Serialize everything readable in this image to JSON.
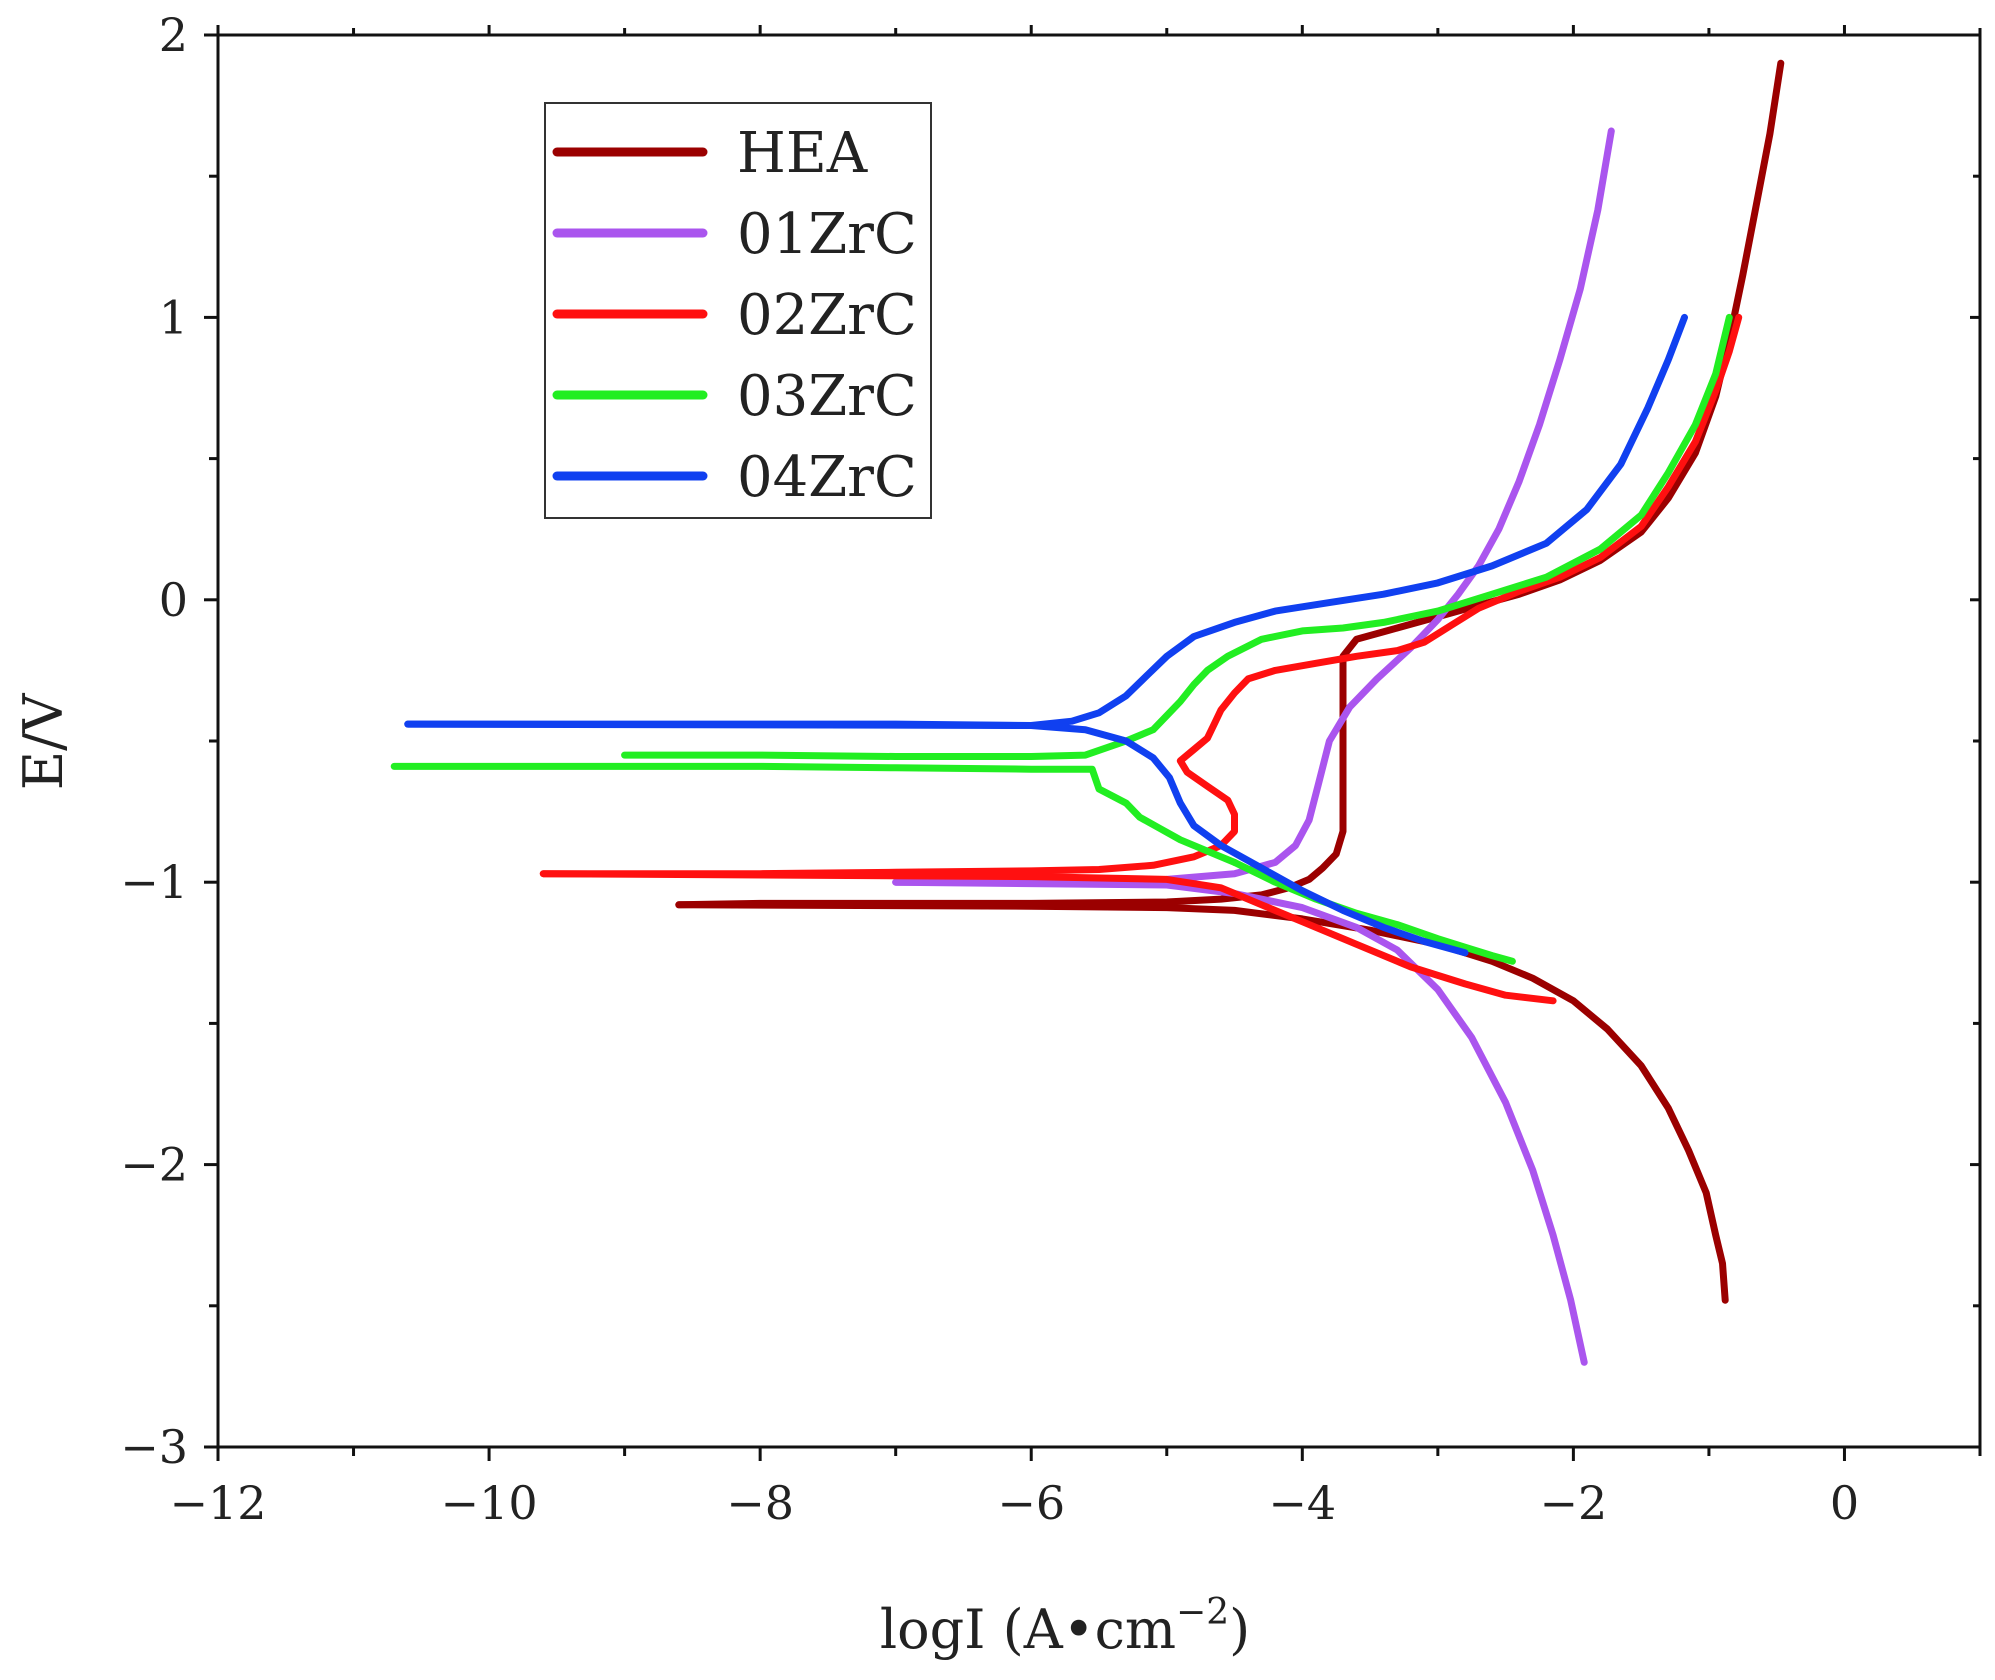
{
  "chart_data": {
    "type": "line",
    "title": "",
    "xlabel": "logI (A•cm",
    "xlabel_sup": "−2",
    "xlabel_close": ")",
    "ylabel": "E/V",
    "xlim": [
      -12,
      1
    ],
    "ylim": [
      -3,
      2
    ],
    "xticks": [
      -12,
      -10,
      -8,
      -6,
      -4,
      -2,
      0
    ],
    "xtick_labels": [
      "−12",
      "−10",
      "−8",
      "−6",
      "−4",
      "−2",
      "0"
    ],
    "yticks": [
      -3,
      -2,
      -1,
      0,
      1,
      2
    ],
    "ytick_labels": [
      "−3",
      "−2",
      "−1",
      "0",
      "1",
      "2"
    ],
    "grid": false,
    "legend_position": "top-left",
    "series": [
      {
        "name": "HEA",
        "color": "#9b0000",
        "points": [
          [
            -8.6,
            -1.08
          ],
          [
            -8.0,
            -1.075
          ],
          [
            -7.0,
            -1.075
          ],
          [
            -6.0,
            -1.075
          ],
          [
            -5.0,
            -1.07
          ],
          [
            -4.6,
            -1.06
          ],
          [
            -4.3,
            -1.045
          ],
          [
            -4.1,
            -1.02
          ],
          [
            -3.95,
            -0.99
          ],
          [
            -3.85,
            -0.95
          ],
          [
            -3.75,
            -0.9
          ],
          [
            -3.7,
            -0.82
          ],
          [
            -3.7,
            -0.6
          ],
          [
            -3.7,
            -0.4
          ],
          [
            -3.7,
            -0.2
          ],
          [
            -3.6,
            -0.14
          ],
          [
            -3.3,
            -0.1
          ],
          [
            -3.0,
            -0.06
          ],
          [
            -2.7,
            -0.02
          ],
          [
            -2.4,
            0.02
          ],
          [
            -2.1,
            0.07
          ],
          [
            -1.8,
            0.14
          ],
          [
            -1.5,
            0.24
          ],
          [
            -1.3,
            0.36
          ],
          [
            -1.1,
            0.52
          ],
          [
            -0.95,
            0.72
          ],
          [
            -0.85,
            0.92
          ],
          [
            -0.75,
            1.15
          ],
          [
            -0.65,
            1.4
          ],
          [
            -0.55,
            1.65
          ],
          [
            -0.47,
            1.9
          ]
        ],
        "cathodic": [
          [
            -8.6,
            -1.08
          ],
          [
            -6.0,
            -1.085
          ],
          [
            -5.0,
            -1.09
          ],
          [
            -4.5,
            -1.1
          ],
          [
            -4.0,
            -1.13
          ],
          [
            -3.5,
            -1.17
          ],
          [
            -3.0,
            -1.22
          ],
          [
            -2.6,
            -1.28
          ],
          [
            -2.3,
            -1.34
          ],
          [
            -2.0,
            -1.42
          ],
          [
            -1.75,
            -1.52
          ],
          [
            -1.5,
            -1.65
          ],
          [
            -1.3,
            -1.8
          ],
          [
            -1.15,
            -1.95
          ],
          [
            -1.02,
            -2.1
          ],
          [
            -0.95,
            -2.25
          ],
          [
            -0.9,
            -2.35
          ],
          [
            -0.88,
            -2.48
          ]
        ]
      },
      {
        "name": "01ZrC",
        "color": "#aa55ee",
        "points": [
          [
            -7.0,
            -1.0
          ],
          [
            -6.0,
            -1.0
          ],
          [
            -5.0,
            -0.99
          ],
          [
            -4.5,
            -0.97
          ],
          [
            -4.2,
            -0.93
          ],
          [
            -4.05,
            -0.87
          ],
          [
            -3.95,
            -0.78
          ],
          [
            -3.88,
            -0.65
          ],
          [
            -3.8,
            -0.5
          ],
          [
            -3.65,
            -0.38
          ],
          [
            -3.45,
            -0.28
          ],
          [
            -3.2,
            -0.17
          ],
          [
            -3.0,
            -0.07
          ],
          [
            -2.85,
            0.02
          ],
          [
            -2.7,
            0.12
          ],
          [
            -2.55,
            0.25
          ],
          [
            -2.4,
            0.42
          ],
          [
            -2.25,
            0.62
          ],
          [
            -2.1,
            0.85
          ],
          [
            -1.95,
            1.1
          ],
          [
            -1.82,
            1.38
          ],
          [
            -1.72,
            1.66
          ]
        ],
        "cathodic": [
          [
            -7.0,
            -1.0
          ],
          [
            -5.0,
            -1.01
          ],
          [
            -4.5,
            -1.04
          ],
          [
            -4.0,
            -1.09
          ],
          [
            -3.6,
            -1.16
          ],
          [
            -3.3,
            -1.24
          ],
          [
            -3.0,
            -1.38
          ],
          [
            -2.75,
            -1.55
          ],
          [
            -2.5,
            -1.78
          ],
          [
            -2.3,
            -2.02
          ],
          [
            -2.15,
            -2.25
          ],
          [
            -2.02,
            -2.48
          ],
          [
            -1.92,
            -2.7
          ]
        ]
      },
      {
        "name": "02ZrC",
        "color": "#ff1010",
        "points": [
          [
            -9.6,
            -0.97
          ],
          [
            -8.0,
            -0.97
          ],
          [
            -7.0,
            -0.965
          ],
          [
            -6.0,
            -0.96
          ],
          [
            -5.5,
            -0.955
          ],
          [
            -5.1,
            -0.94
          ],
          [
            -4.8,
            -0.91
          ],
          [
            -4.6,
            -0.87
          ],
          [
            -4.5,
            -0.82
          ],
          [
            -4.5,
            -0.76
          ],
          [
            -4.55,
            -0.71
          ],
          [
            -4.7,
            -0.66
          ],
          [
            -4.85,
            -0.61
          ],
          [
            -4.9,
            -0.57
          ],
          [
            -4.8,
            -0.53
          ],
          [
            -4.7,
            -0.49
          ],
          [
            -4.65,
            -0.44
          ],
          [
            -4.6,
            -0.39
          ],
          [
            -4.5,
            -0.33
          ],
          [
            -4.4,
            -0.28
          ],
          [
            -4.2,
            -0.25
          ],
          [
            -3.9,
            -0.225
          ],
          [
            -3.6,
            -0.2
          ],
          [
            -3.3,
            -0.18
          ],
          [
            -3.1,
            -0.15
          ],
          [
            -2.9,
            -0.09
          ],
          [
            -2.7,
            -0.03
          ],
          [
            -2.4,
            0.03
          ],
          [
            -2.1,
            0.08
          ],
          [
            -1.8,
            0.15
          ],
          [
            -1.5,
            0.26
          ],
          [
            -1.3,
            0.4
          ],
          [
            -1.1,
            0.56
          ],
          [
            -0.95,
            0.74
          ],
          [
            -0.85,
            0.88
          ],
          [
            -0.78,
            1.0
          ]
        ],
        "cathodic": [
          [
            -9.6,
            -0.97
          ],
          [
            -6.0,
            -0.98
          ],
          [
            -5.0,
            -0.99
          ],
          [
            -4.6,
            -1.02
          ],
          [
            -4.3,
            -1.08
          ],
          [
            -4.0,
            -1.14
          ],
          [
            -3.6,
            -1.22
          ],
          [
            -3.2,
            -1.3
          ],
          [
            -2.8,
            -1.36
          ],
          [
            -2.5,
            -1.4
          ],
          [
            -2.15,
            -1.42
          ]
        ]
      },
      {
        "name": "03ZrC",
        "color": "#22ee22",
        "points": [
          [
            -10.7,
            -0.59
          ],
          [
            -9.0,
            -0.59
          ],
          [
            -8.0,
            -0.59
          ],
          [
            -7.0,
            -0.595
          ],
          [
            -6.0,
            -0.6
          ],
          [
            -5.55,
            -0.6
          ],
          [
            -5.5,
            -0.67
          ],
          [
            -5.3,
            -0.72
          ],
          [
            -5.2,
            -0.77
          ],
          [
            -5.05,
            -0.81
          ],
          [
            -4.9,
            -0.85
          ],
          [
            -4.75,
            -0.88
          ],
          [
            -4.6,
            -0.91
          ],
          [
            -4.5,
            -0.93
          ]
        ],
        "anodic": [
          [
            -9.0,
            -0.55
          ],
          [
            -8.0,
            -0.55
          ],
          [
            -7.0,
            -0.555
          ],
          [
            -6.0,
            -0.555
          ],
          [
            -5.6,
            -0.55
          ],
          [
            -5.3,
            -0.5
          ],
          [
            -5.1,
            -0.46
          ],
          [
            -5.0,
            -0.41
          ],
          [
            -4.9,
            -0.36
          ],
          [
            -4.8,
            -0.3
          ],
          [
            -4.7,
            -0.25
          ],
          [
            -4.55,
            -0.2
          ],
          [
            -4.3,
            -0.14
          ],
          [
            -4.0,
            -0.11
          ],
          [
            -3.7,
            -0.1
          ],
          [
            -3.4,
            -0.08
          ],
          [
            -3.0,
            -0.04
          ],
          [
            -2.6,
            0.02
          ],
          [
            -2.2,
            0.08
          ],
          [
            -1.8,
            0.18
          ],
          [
            -1.5,
            0.3
          ],
          [
            -1.3,
            0.45
          ],
          [
            -1.1,
            0.62
          ],
          [
            -0.95,
            0.8
          ],
          [
            -0.85,
            1.0
          ]
        ],
        "cathodic": [
          [
            -4.5,
            -0.93
          ],
          [
            -4.2,
            -1.0
          ],
          [
            -3.9,
            -1.06
          ],
          [
            -3.6,
            -1.11
          ],
          [
            -3.3,
            -1.15
          ],
          [
            -3.0,
            -1.2
          ],
          [
            -2.8,
            -1.23
          ],
          [
            -2.6,
            -1.26
          ],
          [
            -2.45,
            -1.28
          ]
        ]
      },
      {
        "name": "04ZrC",
        "color": "#1040f0",
        "points": [
          [
            -10.6,
            -0.44
          ],
          [
            -9.0,
            -0.44
          ],
          [
            -8.0,
            -0.44
          ],
          [
            -7.0,
            -0.44
          ],
          [
            -6.0,
            -0.445
          ],
          [
            -5.7,
            -0.43
          ],
          [
            -5.5,
            -0.4
          ],
          [
            -5.3,
            -0.34
          ],
          [
            -5.15,
            -0.27
          ],
          [
            -5.0,
            -0.2
          ],
          [
            -4.8,
            -0.13
          ],
          [
            -4.5,
            -0.08
          ],
          [
            -4.2,
            -0.04
          ],
          [
            -3.8,
            -0.01
          ],
          [
            -3.4,
            0.02
          ],
          [
            -3.0,
            0.06
          ],
          [
            -2.6,
            0.12
          ],
          [
            -2.2,
            0.2
          ],
          [
            -1.9,
            0.32
          ],
          [
            -1.65,
            0.48
          ],
          [
            -1.45,
            0.68
          ],
          [
            -1.3,
            0.85
          ],
          [
            -1.18,
            1.0
          ]
        ],
        "cathodic": [
          [
            -10.6,
            -0.44
          ],
          [
            -6.0,
            -0.445
          ],
          [
            -5.6,
            -0.46
          ],
          [
            -5.3,
            -0.5
          ],
          [
            -5.1,
            -0.56
          ],
          [
            -4.98,
            -0.63
          ],
          [
            -4.9,
            -0.72
          ],
          [
            -4.8,
            -0.8
          ],
          [
            -4.6,
            -0.87
          ],
          [
            -4.3,
            -0.95
          ],
          [
            -4.0,
            -1.03
          ],
          [
            -3.7,
            -1.1
          ],
          [
            -3.4,
            -1.16
          ],
          [
            -3.1,
            -1.21
          ],
          [
            -2.8,
            -1.25
          ]
        ]
      }
    ]
  }
}
